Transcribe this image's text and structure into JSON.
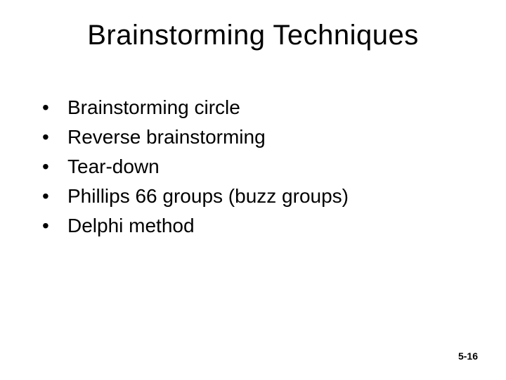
{
  "slide": {
    "title": "Brainstorming Techniques",
    "bullets": [
      "Brainstorming circle",
      "Reverse brainstorming",
      "Tear-down",
      "Phillips 66 groups (buzz groups)",
      "Delphi method"
    ],
    "footer": "5-16"
  },
  "style": {
    "background_color": "#ffffff",
    "text_color": "#000000",
    "title_fontsize": 40,
    "body_fontsize": 28,
    "footer_fontsize": 14,
    "font_family": "Arial"
  }
}
